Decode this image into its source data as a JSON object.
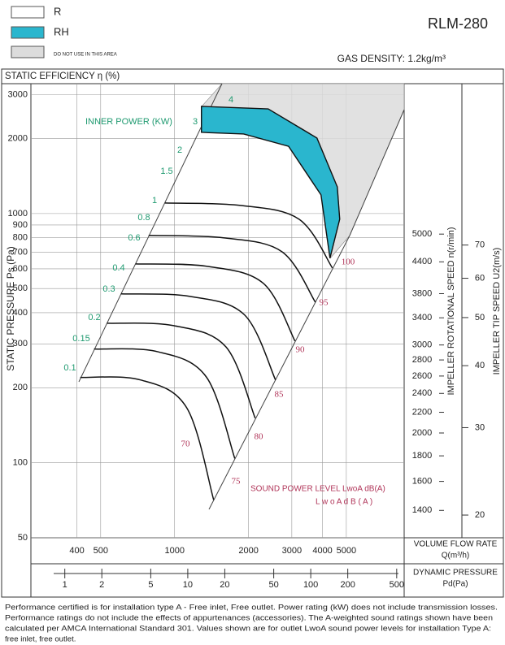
{
  "legend": {
    "items": [
      {
        "label": "R",
        "color": "#ffffff"
      },
      {
        "label": "RH",
        "color": "#2ab6ce"
      },
      {
        "label": "DO NOT USE IN THIS AREA",
        "color": "#dcdcdc"
      }
    ]
  },
  "header": {
    "model": "RLM-280",
    "gas_density": "GAS DENSITY: 1.2kg/m³"
  },
  "chart_data": {
    "type": "line",
    "title": "STATIC EFFICIENCY η (%)",
    "ylabel": "STATIC PRESSURE Ps (Pa)",
    "xlabel": "VOLUME FLOW RATE",
    "xunit": "Q(m³/h)",
    "xscale": "log",
    "yscale": "log",
    "grid": true,
    "xlim": [
      260,
      8600
    ],
    "ylim": [
      50,
      3320
    ],
    "xticks": [
      400,
      500,
      1000,
      2000,
      3000,
      4000,
      5000
    ],
    "yticks": [
      50,
      100,
      200,
      300,
      400,
      500,
      600,
      700,
      800,
      900,
      1000,
      2000,
      3000
    ],
    "dynamic_pressure_axis": {
      "label": "DYNAMIC PRESSURE",
      "unit": "Pd(Pa)",
      "lim": [
        0.53,
        575
      ],
      "ticks": [
        1,
        2,
        5,
        10,
        20,
        50,
        100,
        200,
        500
      ]
    },
    "speed_axis": {
      "label": "IMPELLER ROTATIONAL SPEED n(r/min)",
      "lim": [
        1234,
        10000
      ],
      "ticks": [
        1400,
        1600,
        1800,
        2000,
        2200,
        2400,
        2600,
        2800,
        3000,
        3400,
        3800,
        4400,
        5000
      ]
    },
    "tip_speed_axis": {
      "label": "IMPELLER TIP SPEED U2(m/s)",
      "lim": [
        18,
        148
      ],
      "ticks": [
        20,
        30,
        40,
        50,
        60,
        70
      ]
    },
    "series": [
      {
        "color": "#111111",
        "x": [
          413,
          726,
          1121,
          1442
        ],
        "values": [
          220,
          215,
          166,
          71
        ]
      },
      {
        "color": "#111111",
        "x": [
          470,
          852,
          1346,
          1758
        ],
        "values": [
          286,
          279,
          221,
          104
        ]
      },
      {
        "color": "#111111",
        "x": [
          531,
          992,
          1617,
          2128
        ],
        "values": [
          363,
          355,
          292,
          151
        ]
      },
      {
        "color": "#111111",
        "x": [
          605,
          1156,
          1926,
          2575
        ],
        "values": [
          476,
          465,
          392,
          215
        ]
      },
      {
        "color": "#111111",
        "x": [
          693,
          1357,
          2296,
          3090
        ],
        "values": [
          628,
          614,
          525,
          308
        ]
      },
      {
        "color": "#111111",
        "x": [
          784,
          1580,
          2735,
          3741
        ],
        "values": [
          817,
          799,
          703,
          441
        ]
      },
      {
        "color": "#111111",
        "x": [
          913,
          1854,
          3212,
          4388
        ],
        "values": [
          1102,
          1078,
          949,
          605
        ]
      }
    ],
    "rh_region": {
      "color": "#2ab6ce",
      "x": [
        1286,
        2404,
        3796,
        4595,
        4700,
        4290,
        3944,
        2910,
        1911,
        1286
      ],
      "values": [
        2692,
        2630,
        2010,
        1280,
        949,
        662,
        1188,
        1862,
        2085,
        2118
      ]
    },
    "inner_power_title": "INNER POWER (KW)",
    "power_color": "#1f9a70",
    "power_labels": [
      "4",
      "3",
      "2",
      "1.5",
      "1",
      "0.8",
      "0.6",
      "0.4",
      "0.3",
      "0.2",
      "0.15",
      "0.1"
    ],
    "efficiency_color": "#b03458",
    "efficiency_labels": [
      "100",
      "95",
      "90",
      "85",
      "80",
      "75",
      "70"
    ],
    "sound_power_title": "SOUND POWER LEVEL LwoA dB(A)",
    "sound_power_unit": "L w o A d B ( A )"
  },
  "footer": [
    "Performance certified is for installation type A - Free inlet, Free outlet. Power rating (kW) does not include transmission losses.",
    "Performance ratings do not include the effects of appurtenances (accessories). The A-weighted sound ratings shown have been",
    "calculated per AMCA International Standard 301. Values shown are for outlet LwoA sound power levels for installation Type A:",
    "free inlet, free outlet."
  ]
}
